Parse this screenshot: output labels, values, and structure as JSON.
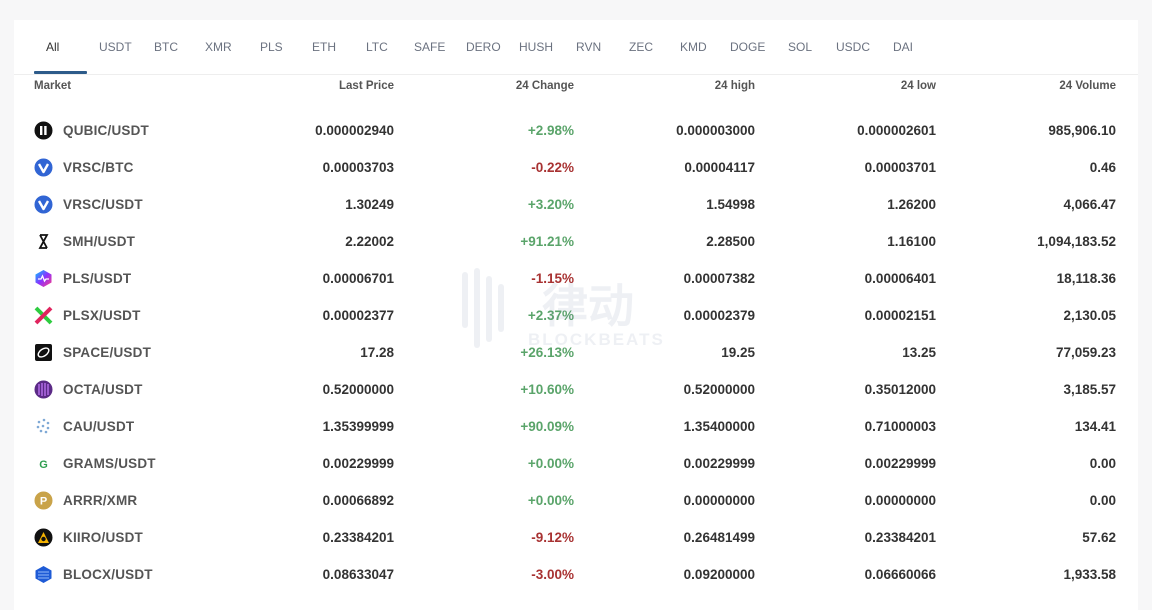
{
  "tabs": [
    "All",
    "USDT",
    "BTC",
    "XMR",
    "PLS",
    "ETH",
    "LTC",
    "SAFE",
    "DERO",
    "HUSH",
    "RVN",
    "ZEC",
    "KMD",
    "DOGE",
    "SOL",
    "USDC",
    "DAI"
  ],
  "active_tab": "All",
  "columns": {
    "market": "Market",
    "last_price": "Last Price",
    "change": "24 Change",
    "high": "24 high",
    "low": "24 low",
    "volume": "24 Volume"
  },
  "rows": [
    {
      "pair": "QUBIC/USDT",
      "icon": "qubic-icon",
      "price": "0.000002940",
      "change": "+2.98%",
      "high": "0.000003000",
      "low": "0.000002601",
      "volume": "985,906.10"
    },
    {
      "pair": "VRSC/BTC",
      "icon": "verus-icon",
      "price": "0.00003703",
      "change": "-0.22%",
      "high": "0.00004117",
      "low": "0.00003701",
      "volume": "0.46"
    },
    {
      "pair": "VRSC/USDT",
      "icon": "verus-icon",
      "price": "1.30249",
      "change": "+3.20%",
      "high": "1.54998",
      "low": "1.26200",
      "volume": "4,066.47"
    },
    {
      "pair": "SMH/USDT",
      "icon": "smh-icon",
      "price": "2.22002",
      "change": "+91.21%",
      "high": "2.28500",
      "low": "1.16100",
      "volume": "1,094,183.52"
    },
    {
      "pair": "PLS/USDT",
      "icon": "pulsechain-icon",
      "price": "0.00006701",
      "change": "-1.15%",
      "high": "0.00007382",
      "low": "0.00006401",
      "volume": "18,118.36"
    },
    {
      "pair": "PLSX/USDT",
      "icon": "pulsex-icon",
      "price": "0.00002377",
      "change": "+2.37%",
      "high": "0.00002379",
      "low": "0.00002151",
      "volume": "2,130.05"
    },
    {
      "pair": "SPACE/USDT",
      "icon": "space-icon",
      "price": "17.28",
      "change": "+26.13%",
      "high": "19.25",
      "low": "13.25",
      "volume": "77,059.23"
    },
    {
      "pair": "OCTA/USDT",
      "icon": "octa-icon",
      "price": "0.52000000",
      "change": "+10.60%",
      "high": "0.52000000",
      "low": "0.35012000",
      "volume": "3,185.57"
    },
    {
      "pair": "CAU/USDT",
      "icon": "cau-icon",
      "price": "1.35399999",
      "change": "+90.09%",
      "high": "1.35400000",
      "low": "0.71000003",
      "volume": "134.41"
    },
    {
      "pair": "GRAMS/USDT",
      "icon": "grams-icon",
      "price": "0.00229999",
      "change": "+0.00%",
      "high": "0.00229999",
      "low": "0.00229999",
      "volume": "0.00"
    },
    {
      "pair": "ARRR/XMR",
      "icon": "pirate-chain-icon",
      "price": "0.00066892",
      "change": "+0.00%",
      "high": "0.00000000",
      "low": "0.00000000",
      "volume": "0.00"
    },
    {
      "pair": "KIIRO/USDT",
      "icon": "kiiro-icon",
      "price": "0.23384201",
      "change": "-9.12%",
      "high": "0.26481499",
      "low": "0.23384201",
      "volume": "57.62"
    },
    {
      "pair": "BLOCX/USDT",
      "icon": "blocx-icon",
      "price": "0.08633047",
      "change": "-3.00%",
      "high": "0.09200000",
      "low": "0.06660066",
      "volume": "1,933.58"
    }
  ],
  "colors": {
    "positive": "#5aa46a",
    "negative": "#a83232",
    "active_underline": "#2d5b8a"
  },
  "watermark": {
    "main": "律动",
    "sub": "BLOCKBEATS"
  }
}
